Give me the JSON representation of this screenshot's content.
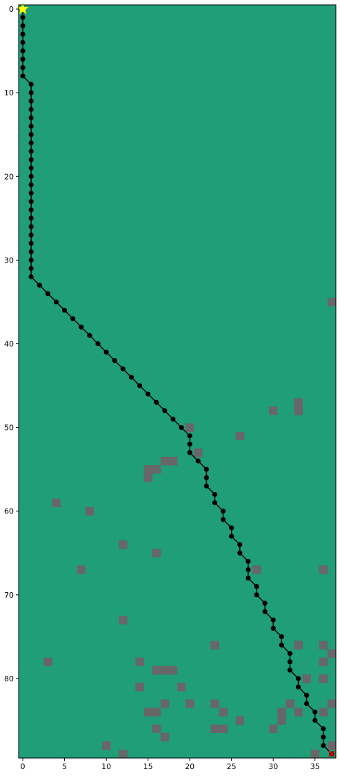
{
  "chart_data": {
    "type": "grid-path",
    "grid": {
      "cols": 38,
      "rows": 90
    },
    "xlim": [
      -0.5,
      37.5
    ],
    "ylim": [
      89.5,
      -0.5
    ],
    "xticks": [
      0,
      5,
      10,
      15,
      20,
      25,
      30,
      35
    ],
    "yticks": [
      0,
      10,
      20,
      30,
      40,
      50,
      60,
      70,
      80
    ],
    "colors": {
      "free": "#1f9e78",
      "obstacle": "#676767",
      "path": "#000000",
      "start_marker": "#ffff00",
      "end_marker": "#ff0000"
    },
    "obstacles": [
      [
        37,
        35
      ],
      [
        33,
        47
      ],
      [
        33,
        48
      ],
      [
        30,
        48
      ],
      [
        20,
        50
      ],
      [
        26,
        51
      ],
      [
        21,
        53
      ],
      [
        17,
        54
      ],
      [
        18,
        54
      ],
      [
        15,
        55
      ],
      [
        16,
        55
      ],
      [
        15,
        56
      ],
      [
        4,
        59
      ],
      [
        8,
        60
      ],
      [
        12,
        64
      ],
      [
        16,
        65
      ],
      [
        7,
        67
      ],
      [
        28,
        67
      ],
      [
        36,
        67
      ],
      [
        12,
        73
      ],
      [
        23,
        76
      ],
      [
        33,
        76
      ],
      [
        36,
        76
      ],
      [
        37,
        77
      ],
      [
        3,
        78
      ],
      [
        14,
        78
      ],
      [
        36,
        78
      ],
      [
        16,
        79
      ],
      [
        17,
        79
      ],
      [
        18,
        79
      ],
      [
        34,
        80
      ],
      [
        36,
        80
      ],
      [
        14,
        81
      ],
      [
        19,
        81
      ],
      [
        17,
        83
      ],
      [
        20,
        83
      ],
      [
        23,
        83
      ],
      [
        32,
        83
      ],
      [
        37,
        83
      ],
      [
        15,
        84
      ],
      [
        16,
        84
      ],
      [
        24,
        84
      ],
      [
        31,
        84
      ],
      [
        33,
        84
      ],
      [
        36,
        84
      ],
      [
        26,
        85
      ],
      [
        31,
        85
      ],
      [
        16,
        86
      ],
      [
        23,
        86
      ],
      [
        24,
        86
      ],
      [
        30,
        86
      ],
      [
        17,
        87
      ],
      [
        10,
        88
      ],
      [
        37,
        88
      ],
      [
        12,
        89
      ],
      [
        35,
        89
      ]
    ],
    "path": [
      [
        0,
        0
      ],
      [
        0,
        1
      ],
      [
        0,
        2
      ],
      [
        0,
        3
      ],
      [
        0,
        4
      ],
      [
        0,
        5
      ],
      [
        0,
        6
      ],
      [
        0,
        7
      ],
      [
        0,
        8
      ],
      [
        1,
        9
      ],
      [
        1,
        10
      ],
      [
        1,
        11
      ],
      [
        1,
        12
      ],
      [
        1,
        13
      ],
      [
        1,
        14
      ],
      [
        1,
        15
      ],
      [
        1,
        16
      ],
      [
        1,
        17
      ],
      [
        1,
        18
      ],
      [
        1,
        19
      ],
      [
        1,
        20
      ],
      [
        1,
        21
      ],
      [
        1,
        22
      ],
      [
        1,
        23
      ],
      [
        1,
        24
      ],
      [
        1,
        25
      ],
      [
        1,
        26
      ],
      [
        1,
        27
      ],
      [
        1,
        28
      ],
      [
        1,
        29
      ],
      [
        1,
        30
      ],
      [
        1,
        31
      ],
      [
        1,
        32
      ],
      [
        2,
        33
      ],
      [
        3,
        34
      ],
      [
        4,
        35
      ],
      [
        5,
        36
      ],
      [
        6,
        37
      ],
      [
        7,
        38
      ],
      [
        8,
        39
      ],
      [
        9,
        40
      ],
      [
        10,
        41
      ],
      [
        11,
        42
      ],
      [
        12,
        43
      ],
      [
        13,
        44
      ],
      [
        14,
        45
      ],
      [
        15,
        46
      ],
      [
        16,
        47
      ],
      [
        17,
        48
      ],
      [
        18,
        49
      ],
      [
        19,
        50
      ],
      [
        20,
        51
      ],
      [
        20,
        52
      ],
      [
        20,
        53
      ],
      [
        21,
        54
      ],
      [
        22,
        55
      ],
      [
        22,
        56
      ],
      [
        22,
        57
      ],
      [
        23,
        58
      ],
      [
        23,
        59
      ],
      [
        24,
        60
      ],
      [
        24,
        61
      ],
      [
        25,
        62
      ],
      [
        25,
        63
      ],
      [
        26,
        64
      ],
      [
        26,
        65
      ],
      [
        27,
        66
      ],
      [
        27,
        67
      ],
      [
        27,
        68
      ],
      [
        28,
        69
      ],
      [
        28,
        70
      ],
      [
        29,
        71
      ],
      [
        29,
        72
      ],
      [
        30,
        73
      ],
      [
        30,
        74
      ],
      [
        31,
        75
      ],
      [
        31,
        76
      ],
      [
        32,
        77
      ],
      [
        32,
        78
      ],
      [
        32,
        79
      ],
      [
        33,
        80
      ],
      [
        33,
        81
      ],
      [
        34,
        82
      ],
      [
        34,
        83
      ],
      [
        35,
        84
      ],
      [
        35,
        85
      ],
      [
        36,
        86
      ],
      [
        36,
        87
      ],
      [
        36,
        88
      ],
      [
        37,
        89
      ]
    ],
    "start": [
      0,
      0
    ],
    "end": [
      37,
      89
    ]
  }
}
